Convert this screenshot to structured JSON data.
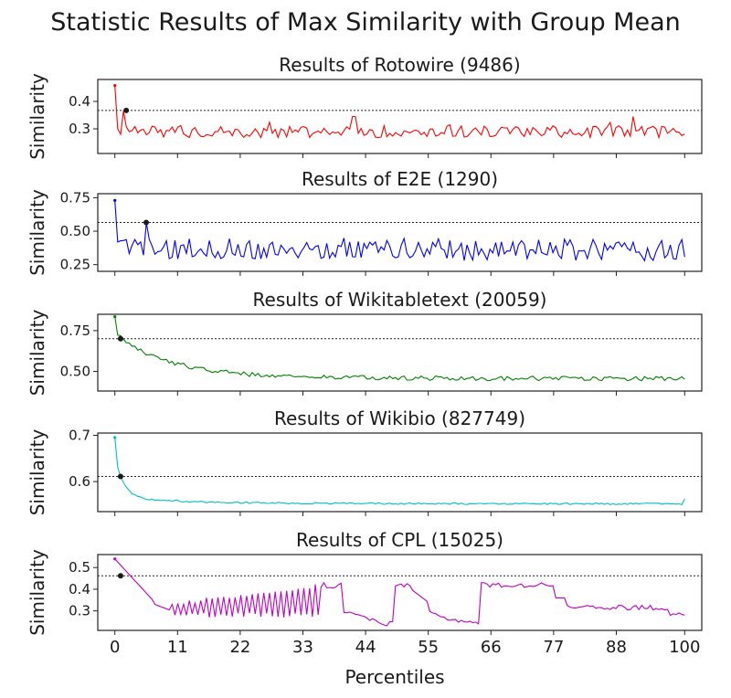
{
  "figure": {
    "suptitle": "Statistic Results of Max Similarity with Group Mean",
    "xlabel": "Percentiles",
    "x_ticks": [
      0,
      11,
      22,
      33,
      44,
      55,
      66,
      77,
      88,
      100
    ]
  },
  "chart_data": [
    {
      "type": "line",
      "title": "Results of Rotowire (9486)",
      "ylabel": "Similarity",
      "xlim": [
        -3,
        103
      ],
      "ylim": [
        0.21,
        0.48
      ],
      "yticks": [
        0.3,
        0.4
      ],
      "color": "#ff0000",
      "threshold": 0.367,
      "marker": {
        "x": 2,
        "y": 0.367
      },
      "shape": "rotowire",
      "series": [
        {
          "x_start": 0,
          "x_end": 100,
          "n": 200
        }
      ]
    },
    {
      "type": "line",
      "title": "Results of E2E (1290)",
      "ylabel": "Similarity",
      "xlim": [
        -3,
        103
      ],
      "ylim": [
        0.2,
        0.78
      ],
      "yticks": [
        0.25,
        0.5,
        0.75
      ],
      "color": "#0000ff",
      "threshold": 0.565,
      "marker": {
        "x": 5.5,
        "y": 0.565
      },
      "shape": "e2e",
      "series": [
        {
          "x_start": 0,
          "x_end": 100,
          "n": 200
        }
      ]
    },
    {
      "type": "line",
      "title": "Results of Wikitabletext (20059)",
      "ylabel": "Similarity",
      "xlim": [
        -3,
        103
      ],
      "ylim": [
        0.38,
        0.85
      ],
      "yticks": [
        0.5,
        0.75
      ],
      "color": "#008000",
      "threshold": 0.7,
      "marker": {
        "x": 1,
        "y": 0.7
      },
      "shape": "wikitable",
      "series": [
        {
          "x_start": 0,
          "x_end": 100,
          "n": 200
        }
      ]
    },
    {
      "type": "line",
      "title": "Results of Wikibio (827749)",
      "ylabel": "Similarity",
      "xlim": [
        -3,
        103
      ],
      "ylim": [
        0.535,
        0.705
      ],
      "yticks": [
        0.6,
        0.7
      ],
      "color": "#00bfbf",
      "threshold": 0.611,
      "marker": {
        "x": 1,
        "y": 0.611
      },
      "shape": "wikibio",
      "series": [
        {
          "x_start": 0,
          "x_end": 100,
          "n": 200
        }
      ]
    },
    {
      "type": "line",
      "title": "Results of CPL (15025)",
      "ylabel": "Similarity",
      "xlim": [
        -3,
        103
      ],
      "ylim": [
        0.21,
        0.56
      ],
      "yticks": [
        0.3,
        0.4,
        0.5
      ],
      "color": "#bf00bf",
      "threshold": 0.462,
      "marker": {
        "x": 1,
        "y": 0.462
      },
      "shape": "cpl",
      "series": [
        {
          "x_start": 0,
          "x_end": 100,
          "n": 200
        }
      ]
    }
  ]
}
